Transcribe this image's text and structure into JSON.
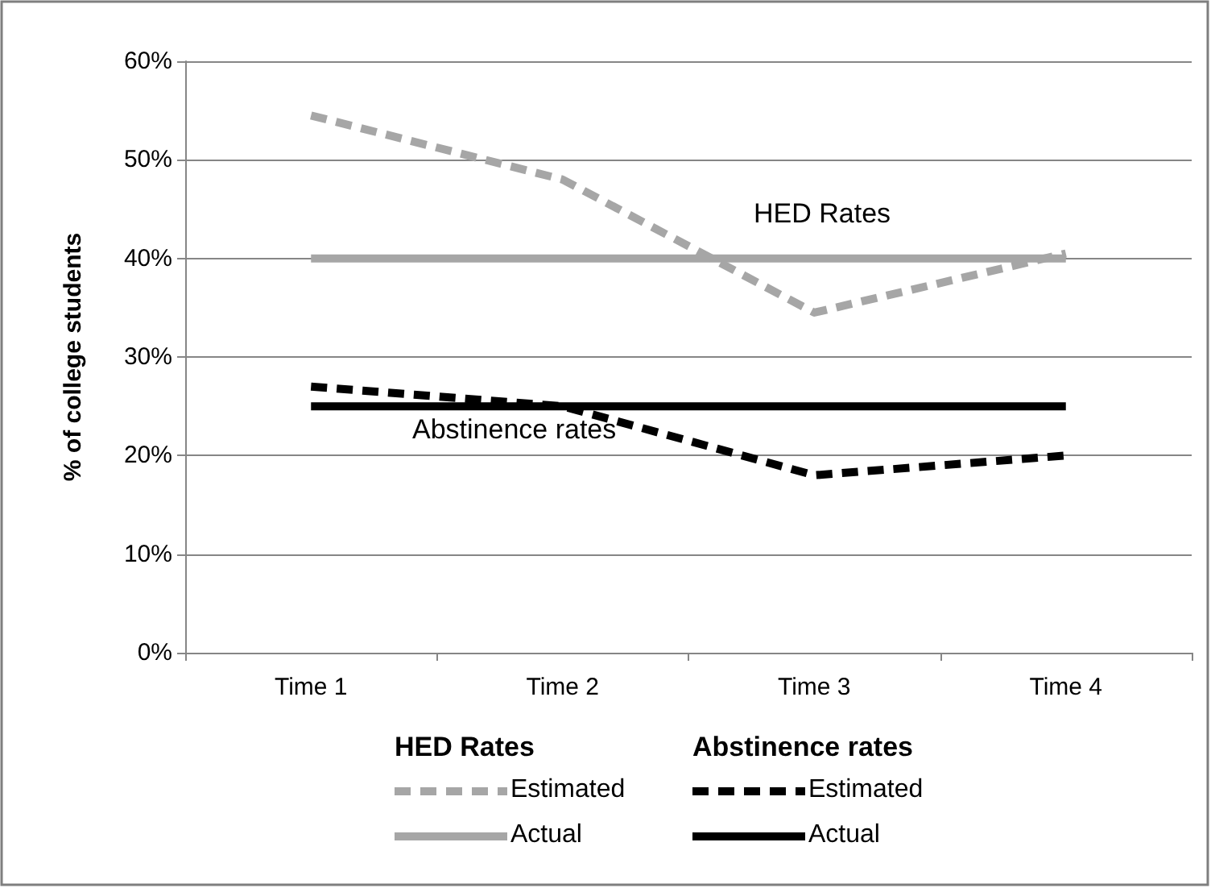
{
  "chart_data": {
    "type": "line",
    "ylabel": "% of college students",
    "categories": [
      "Time 1",
      "Time 2",
      "Time 3",
      "Time 4"
    ],
    "series": [
      {
        "name": "Estimated",
        "color": "#a6a6a6",
        "line_style": "dashed",
        "values": [
          54.5,
          48,
          34.5,
          40.5
        ]
      },
      {
        "name": "Actual",
        "color": "#a6a6a6",
        "line_style": "solid",
        "values": [
          40,
          40,
          40,
          40
        ]
      },
      {
        "name": "Estimated",
        "color": "#000000",
        "line_style": "dashed",
        "values": [
          27,
          25,
          18,
          20
        ]
      },
      {
        "name": "Actual",
        "color": "#000000",
        "line_style": "solid",
        "values": [
          25,
          25,
          25,
          25
        ]
      }
    ],
    "ylim": [
      0,
      60
    ],
    "yticks": [
      {
        "value": 0,
        "label": "0%"
      },
      {
        "value": 10,
        "label": "10%"
      },
      {
        "value": 20,
        "label": "20%"
      },
      {
        "value": 30,
        "label": "30%"
      },
      {
        "value": 40,
        "label": "40%"
      },
      {
        "value": 50,
        "label": "50%"
      },
      {
        "value": 60,
        "label": "60%"
      }
    ],
    "grid": "y",
    "marker": "none",
    "legend": "bottom",
    "annotations": [
      "HED Rates",
      "Abstinence rates"
    ]
  }
}
